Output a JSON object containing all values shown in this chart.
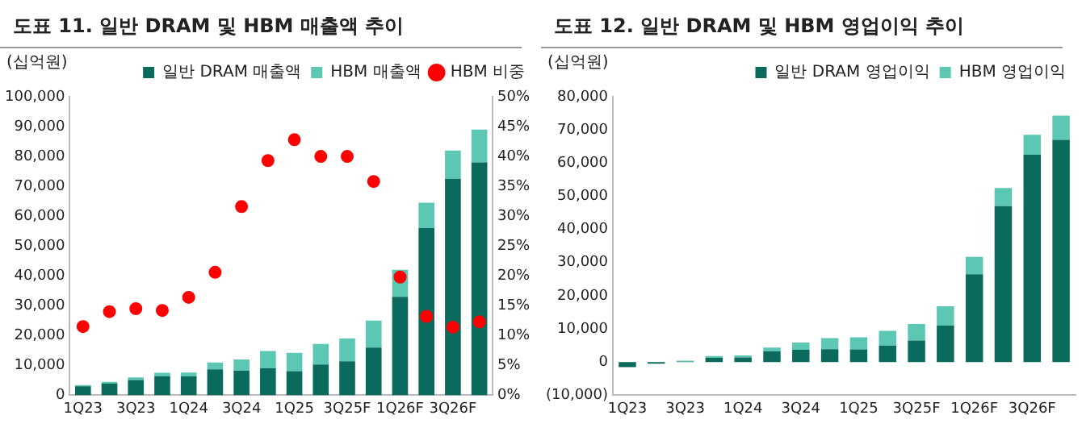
{
  "chart_data": [
    {
      "type": "bar",
      "title": "도표 11. 일반 DRAM 및 HBM 매출액 추이",
      "ylabel": "(십억원)",
      "stacked": true,
      "legend": "top",
      "grid": false,
      "categories": [
        "1Q23",
        null,
        "3Q23",
        null,
        "1Q24",
        null,
        "3Q24",
        null,
        "1Q25",
        null,
        "3Q25F",
        null,
        "1Q26F",
        null,
        "3Q26F",
        null
      ],
      "series": [
        {
          "name": "일반 DRAM 매출액",
          "color": "#0a6b5c",
          "values": [
            3000,
            3900,
            5100,
            6400,
            6300,
            8700,
            8200,
            9000,
            8100,
            10300,
            11400,
            16000,
            33000,
            56000,
            72500,
            78000
          ]
        },
        {
          "name": "HBM 매출액",
          "color": "#5cc8b4",
          "values": [
            400,
            600,
            900,
            1100,
            1300,
            2300,
            3800,
            5800,
            6100,
            6900,
            7600,
            9000,
            9000,
            8500,
            9500,
            11000
          ]
        },
        {
          "name": "HBM 비중",
          "type": "scatter",
          "axis": "y2",
          "marker": "circle",
          "color": "#ff0000",
          "values": [
            11.5,
            14,
            14.5,
            14.2,
            16.4,
            20.6,
            31.6,
            39.3,
            42.8,
            40,
            40,
            35.8,
            19.8,
            13.2,
            11.4,
            12.3
          ]
        }
      ],
      "ylim": [
        0,
        100000
      ],
      "yticks": [
        {
          "value": 0,
          "label": "0"
        },
        {
          "value": 10000,
          "label": "10,000"
        },
        {
          "value": 20000,
          "label": "20,000"
        },
        {
          "value": 30000,
          "label": "30,000"
        },
        {
          "value": 40000,
          "label": "40,000"
        },
        {
          "value": 50000,
          "label": "50,000"
        },
        {
          "value": 60000,
          "label": "60,000"
        },
        {
          "value": 70000,
          "label": "70,000"
        },
        {
          "value": 80000,
          "label": "80,000"
        },
        {
          "value": 90000,
          "label": "90,000"
        },
        {
          "value": 100000,
          "label": "100,000"
        }
      ],
      "y2lim": [
        0,
        50
      ],
      "y2ticks": [
        {
          "value": 0,
          "label": "0%"
        },
        {
          "value": 5,
          "label": "5%"
        },
        {
          "value": 10,
          "label": "10%"
        },
        {
          "value": 15,
          "label": "15%"
        },
        {
          "value": 20,
          "label": "20%"
        },
        {
          "value": 25,
          "label": "25%"
        },
        {
          "value": 30,
          "label": "30%"
        },
        {
          "value": 35,
          "label": "35%"
        },
        {
          "value": 40,
          "label": "40%"
        },
        {
          "value": 45,
          "label": "45%"
        },
        {
          "value": 50,
          "label": "50%"
        }
      ]
    },
    {
      "type": "bar",
      "title": "도표 12. 일반 DRAM 및 HBM 영업이익 추이",
      "ylabel": "(십억원)",
      "stacked": true,
      "legend": "top",
      "grid": false,
      "categories": [
        "1Q23",
        null,
        "3Q23",
        null,
        "1Q24",
        null,
        "3Q24",
        null,
        "1Q25",
        null,
        "3Q25F",
        null,
        "1Q26F",
        null,
        "3Q26F",
        null
      ],
      "series": [
        {
          "name": "일반 DRAM 영업이익",
          "color": "#0a6b5c",
          "values": [
            -1500,
            -500,
            100,
            1300,
            1400,
            3200,
            3700,
            3900,
            3800,
            5000,
            6500,
            11000,
            26500,
            47000,
            62500,
            67000
          ]
        },
        {
          "name": "HBM 영업이익",
          "color": "#5cc8b4",
          "values": [
            0,
            0,
            300,
            500,
            600,
            1200,
            2200,
            3300,
            3700,
            4400,
            5000,
            5800,
            5200,
            5500,
            6000,
            7300
          ]
        }
      ],
      "ylim": [
        -10000,
        80000
      ],
      "yticks": [
        {
          "value": -10000,
          "label": "(10,000)"
        },
        {
          "value": 0,
          "label": "0"
        },
        {
          "value": 10000,
          "label": "10,000"
        },
        {
          "value": 20000,
          "label": "20,000"
        },
        {
          "value": 30000,
          "label": "30,000"
        },
        {
          "value": 40000,
          "label": "40,000"
        },
        {
          "value": 50000,
          "label": "50,000"
        },
        {
          "value": 60000,
          "label": "60,000"
        },
        {
          "value": 70000,
          "label": "70,000"
        },
        {
          "value": 80000,
          "label": "80,000"
        }
      ]
    }
  ]
}
